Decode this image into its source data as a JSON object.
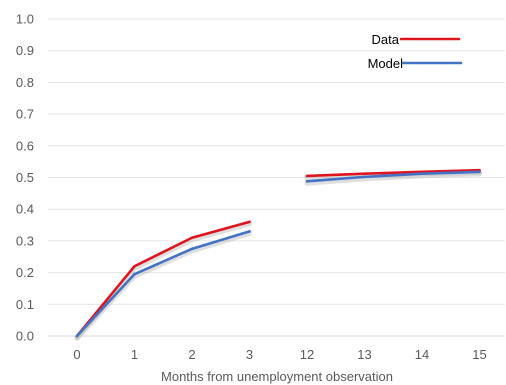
{
  "chart_data": {
    "type": "line",
    "title": "",
    "xlabel": "Months from unemployment observation",
    "ylabel": "",
    "ylim": [
      0,
      1.0
    ],
    "yticks": [
      "0.0",
      "0.1",
      "0.2",
      "0.3",
      "0.4",
      "0.5",
      "0.6",
      "0.7",
      "0.8",
      "0.9",
      "1.0"
    ],
    "categories": [
      "0",
      "1",
      "2",
      "3",
      "12",
      "13",
      "14",
      "15"
    ],
    "grid": "horizontal",
    "legend_position": "top-right",
    "series": [
      {
        "name": "Data",
        "color": "#e0141e",
        "segments": [
          {
            "categories": [
              "0",
              "1",
              "2",
              "3"
            ],
            "values": [
              0.0,
              0.22,
              0.31,
              0.36
            ]
          },
          {
            "categories": [
              "12",
              "13",
              "14",
              "15"
            ],
            "values": [
              0.505,
              0.512,
              0.518,
              0.523
            ]
          }
        ]
      },
      {
        "name": "Model",
        "color": "#4472c4",
        "segments": [
          {
            "categories": [
              "0",
              "1",
              "2",
              "3"
            ],
            "values": [
              0.0,
              0.195,
              0.275,
              0.33
            ]
          },
          {
            "categories": [
              "12",
              "13",
              "14",
              "15"
            ],
            "values": [
              0.488,
              0.502,
              0.512,
              0.518
            ]
          }
        ]
      }
    ]
  }
}
